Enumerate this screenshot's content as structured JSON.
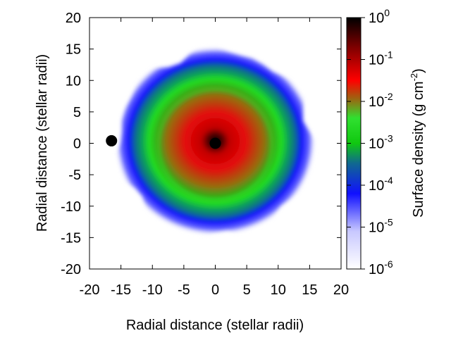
{
  "chart_data": {
    "type": "heatmap",
    "title": "",
    "xlabel": "Radial distance (stellar radii)",
    "ylabel": "Radial distance (stellar radii)",
    "xlim": [
      -20,
      20
    ],
    "ylim": [
      -20,
      20
    ],
    "x_ticks": [
      "-20",
      "-15",
      "-10",
      "-5",
      "0",
      "5",
      "10",
      "15",
      "20"
    ],
    "y_ticks": [
      "20",
      "15",
      "10",
      "5",
      "0",
      "-5",
      "-10",
      "-15",
      "-20"
    ],
    "colorbar": {
      "label": "Surface density (g cm",
      "label_sup": "-2",
      "label_end": ")",
      "scale": "log",
      "range": [
        1e-06,
        1
      ],
      "ticks": [
        {
          "base": "10",
          "exp": "0",
          "value": 1
        },
        {
          "base": "10",
          "exp": "-1",
          "value": 0.1
        },
        {
          "base": "10",
          "exp": "-2",
          "value": 0.01
        },
        {
          "base": "10",
          "exp": "-3",
          "value": 0.001
        },
        {
          "base": "10",
          "exp": "-4",
          "value": 0.0001
        },
        {
          "base": "10",
          "exp": "-5",
          "value": 1e-05
        },
        {
          "base": "10",
          "exp": "-6",
          "value": 1e-06
        }
      ],
      "colors": [
        "#ffffff",
        "#1818ff",
        "#00cc00",
        "#ff0000",
        "#000000"
      ]
    },
    "disk": {
      "center": [
        0,
        0
      ],
      "outer_radius_stellar": 14,
      "inner_radius_red_stellar": 7,
      "green_ring_radius_stellar": 9
    },
    "markers": [
      {
        "name": "primary-star",
        "x": 0,
        "y": 0
      },
      {
        "name": "companion-star",
        "x": -16.5,
        "y": 0.4
      }
    ],
    "grid": false
  }
}
